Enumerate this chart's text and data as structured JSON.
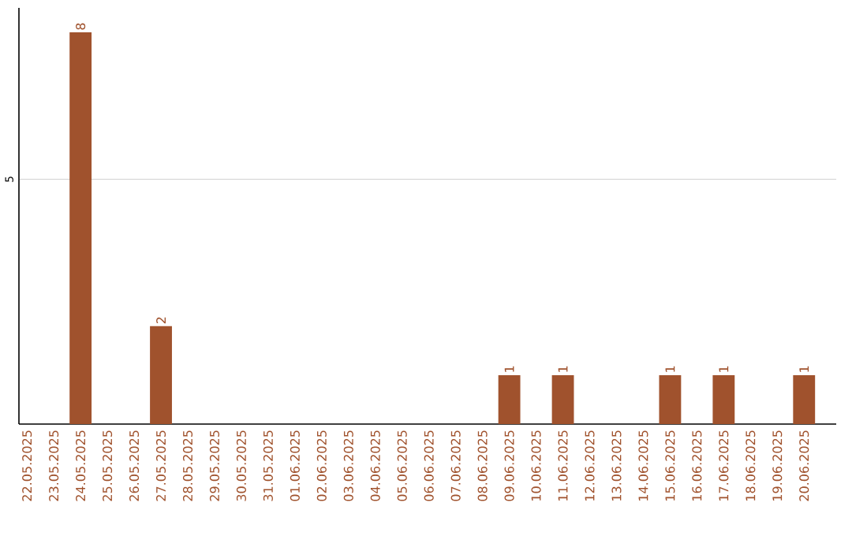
{
  "chart_data": {
    "type": "bar",
    "categories": [
      "22.05.2025",
      "23.05.2025",
      "24.05.2025",
      "25.05.2025",
      "26.05.2025",
      "27.05.2025",
      "28.05.2025",
      "29.05.2025",
      "30.05.2025",
      "31.05.2025",
      "01.06.2025",
      "02.06.2025",
      "03.06.2025",
      "04.06.2025",
      "05.06.2025",
      "06.06.2025",
      "07.06.2025",
      "08.06.2025",
      "09.06.2025",
      "10.06.2025",
      "11.06.2025",
      "12.06.2025",
      "13.06.2025",
      "14.06.2025",
      "15.06.2025",
      "16.06.2025",
      "17.06.2025",
      "18.06.2025",
      "19.06.2025",
      "20.06.2025"
    ],
    "values": [
      0,
      0,
      8,
      0,
      0,
      2,
      0,
      0,
      0,
      0,
      0,
      0,
      0,
      0,
      0,
      0,
      0,
      0,
      1,
      0,
      1,
      0,
      0,
      0,
      1,
      0,
      1,
      0,
      0,
      1
    ],
    "value_labels": [
      null,
      null,
      "8",
      null,
      null,
      "2",
      null,
      null,
      null,
      null,
      null,
      null,
      null,
      null,
      null,
      null,
      null,
      null,
      "1",
      null,
      "1",
      null,
      null,
      null,
      "1",
      null,
      "1",
      null,
      null,
      "1"
    ],
    "color": "#a0522d",
    "ylim": [
      0,
      8.5
    ],
    "yticks": [
      5
    ],
    "grid": "y"
  }
}
